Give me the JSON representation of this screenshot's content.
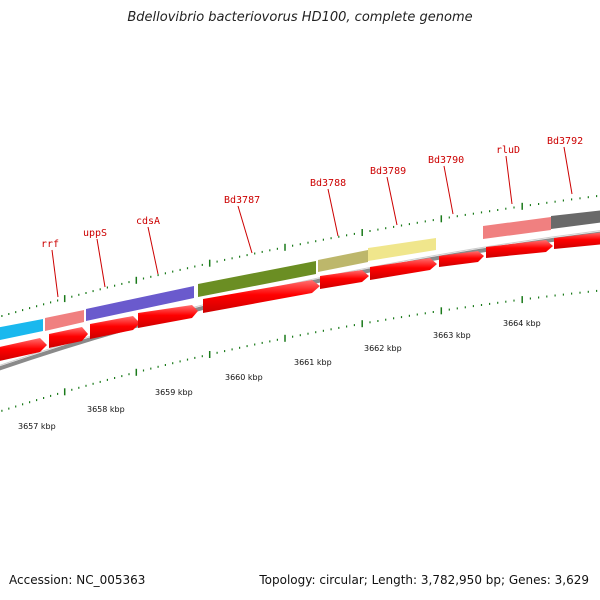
{
  "title": "Bdellovibrio bacteriovorus HD100, complete genome",
  "footer": {
    "accession": "Accession: NC_005363",
    "summary": "Topology: circular; Length: 3,782,950 bp; Genes: 3,629"
  },
  "genes": [
    {
      "label": "rrf"
    },
    {
      "label": "uppS"
    },
    {
      "label": "cdsA"
    },
    {
      "label": "Bd3787"
    },
    {
      "label": "Bd3788"
    },
    {
      "label": "Bd3789"
    },
    {
      "label": "Bd3790"
    },
    {
      "label": "rluD"
    },
    {
      "label": "Bd3792"
    }
  ],
  "scale_labels": [
    "3657 kbp",
    "3658 kbp",
    "3659 kbp",
    "3660 kbp",
    "3661 kbp",
    "3662 kbp",
    "3663 kbp",
    "3664 kbp"
  ],
  "colors": {
    "gene_label": "#cc0000",
    "cds_arrow": "#ff0000",
    "backbone": "#888888",
    "tick": "#1a7a1a",
    "feature_cyan": "#1ab8ee",
    "feature_pink": "#f08080",
    "feature_purple": "#6a5acd",
    "feature_olive": "#6b8e23",
    "feature_khaki": "#bdb76b",
    "feature_yellow": "#f0e68c",
    "feature_gray": "#696969"
  }
}
